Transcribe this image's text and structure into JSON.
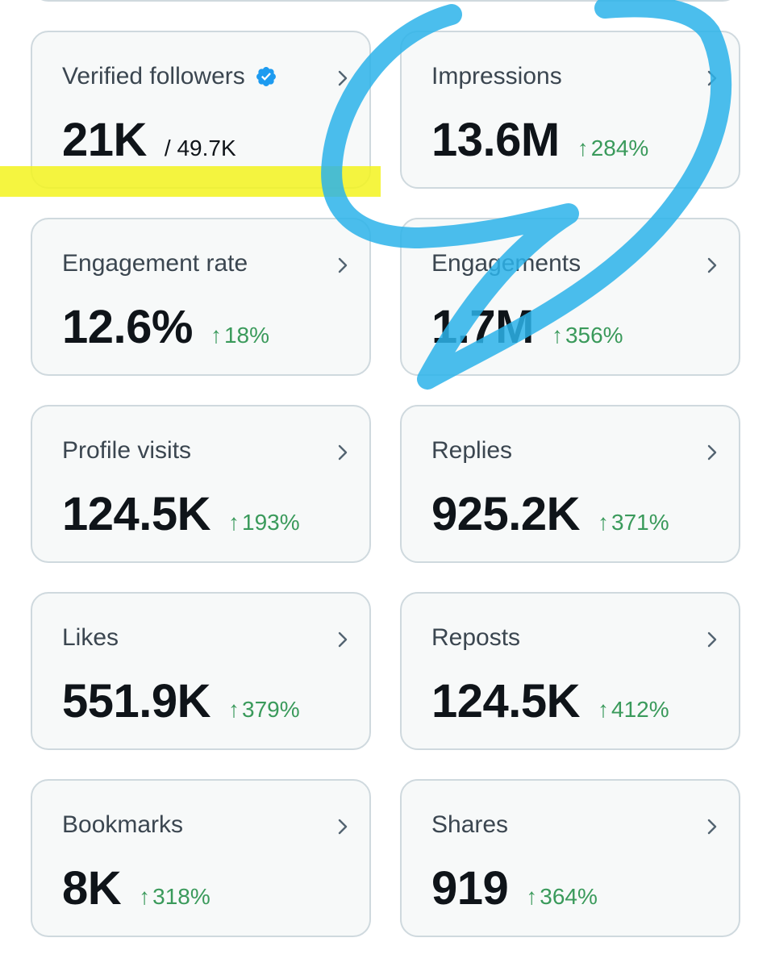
{
  "colors": {
    "card_background": "#f7f9f9",
    "card_border": "#cfd9de",
    "label_text": "#3b4650",
    "value_text": "#0f1419",
    "delta_positive": "#3a9a5b",
    "verified_badge": "#1d9bf0",
    "highlighter_yellow": "#f3f31f",
    "pen_blue": "#2bb3ea"
  },
  "cards": [
    {
      "label": "Verified followers",
      "value": "21K",
      "total": "/ 49.7K",
      "verified_icon": "verified-badge-icon"
    },
    {
      "label": "Impressions",
      "value": "13.6M",
      "delta": "284%"
    },
    {
      "label": "Engagement rate",
      "value": "12.6%",
      "delta": "18%"
    },
    {
      "label": "Engagements",
      "value": "1.7M",
      "delta": "356%"
    },
    {
      "label": "Profile visits",
      "value": "124.5K",
      "delta": "193%"
    },
    {
      "label": "Replies",
      "value": "925.2K",
      "delta": "371%"
    },
    {
      "label": "Likes",
      "value": "551.9K",
      "delta": "379%"
    },
    {
      "label": "Reposts",
      "value": "124.5K",
      "delta": "412%"
    },
    {
      "label": "Bookmarks",
      "value": "8K",
      "delta": "318%"
    },
    {
      "label": "Shares",
      "value": "919",
      "delta": "364%"
    }
  ],
  "icons": {
    "chevron": "chevron-right-icon",
    "delta_arrow": "arrow-up-icon"
  },
  "delta_arrow_glyph": "↑"
}
